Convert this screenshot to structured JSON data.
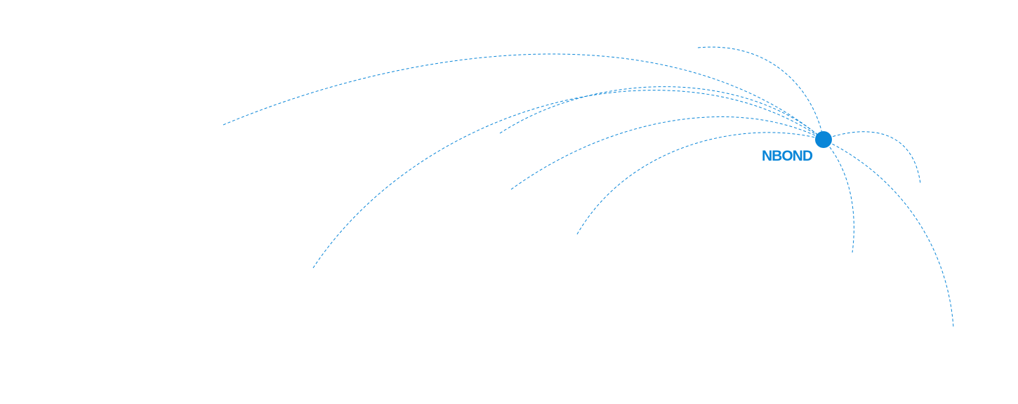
{
  "brand": {
    "logo_text": "NBOND",
    "color": "#0a86d8"
  }
}
